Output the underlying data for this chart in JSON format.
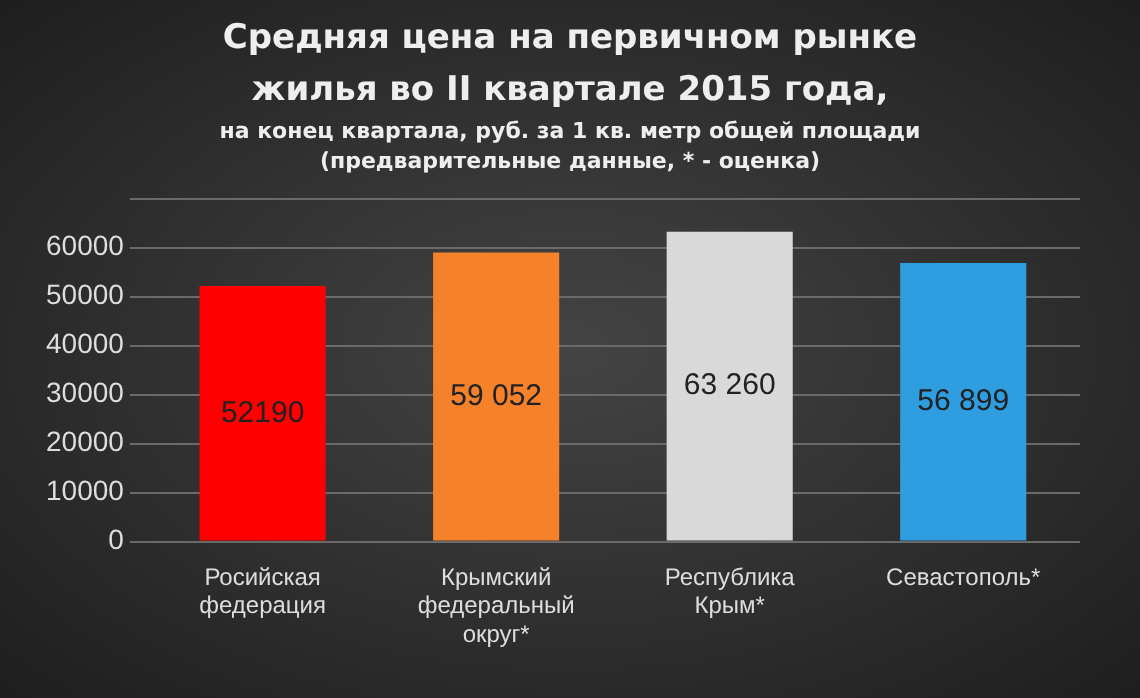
{
  "chart_data": {
    "type": "bar",
    "title": "Средняя цена на первичном рынке жилья во II квартале 2015 года,",
    "subtitle": "на конец квартала, руб. за 1 кв. метр общей площади (предварительные данные, * - оценка)",
    "categories": [
      "Росийская федерация",
      "Крымский федеральный округ*",
      "Республика Крым*",
      "Севастополь*"
    ],
    "values": [
      52190,
      59052,
      63260,
      56899
    ],
    "value_labels": [
      "52190",
      "59 052",
      "63 260",
      "56 899"
    ],
    "colors": [
      "#ff0000",
      "#f5822a",
      "#d9d9d9",
      "#2e9ee0"
    ],
    "ylim": [
      0,
      70000
    ],
    "yticks": [
      0,
      10000,
      20000,
      30000,
      40000,
      50000,
      60000,
      {
        "value": 70000,
        "label": null
      }
    ],
    "grid": "y"
  }
}
